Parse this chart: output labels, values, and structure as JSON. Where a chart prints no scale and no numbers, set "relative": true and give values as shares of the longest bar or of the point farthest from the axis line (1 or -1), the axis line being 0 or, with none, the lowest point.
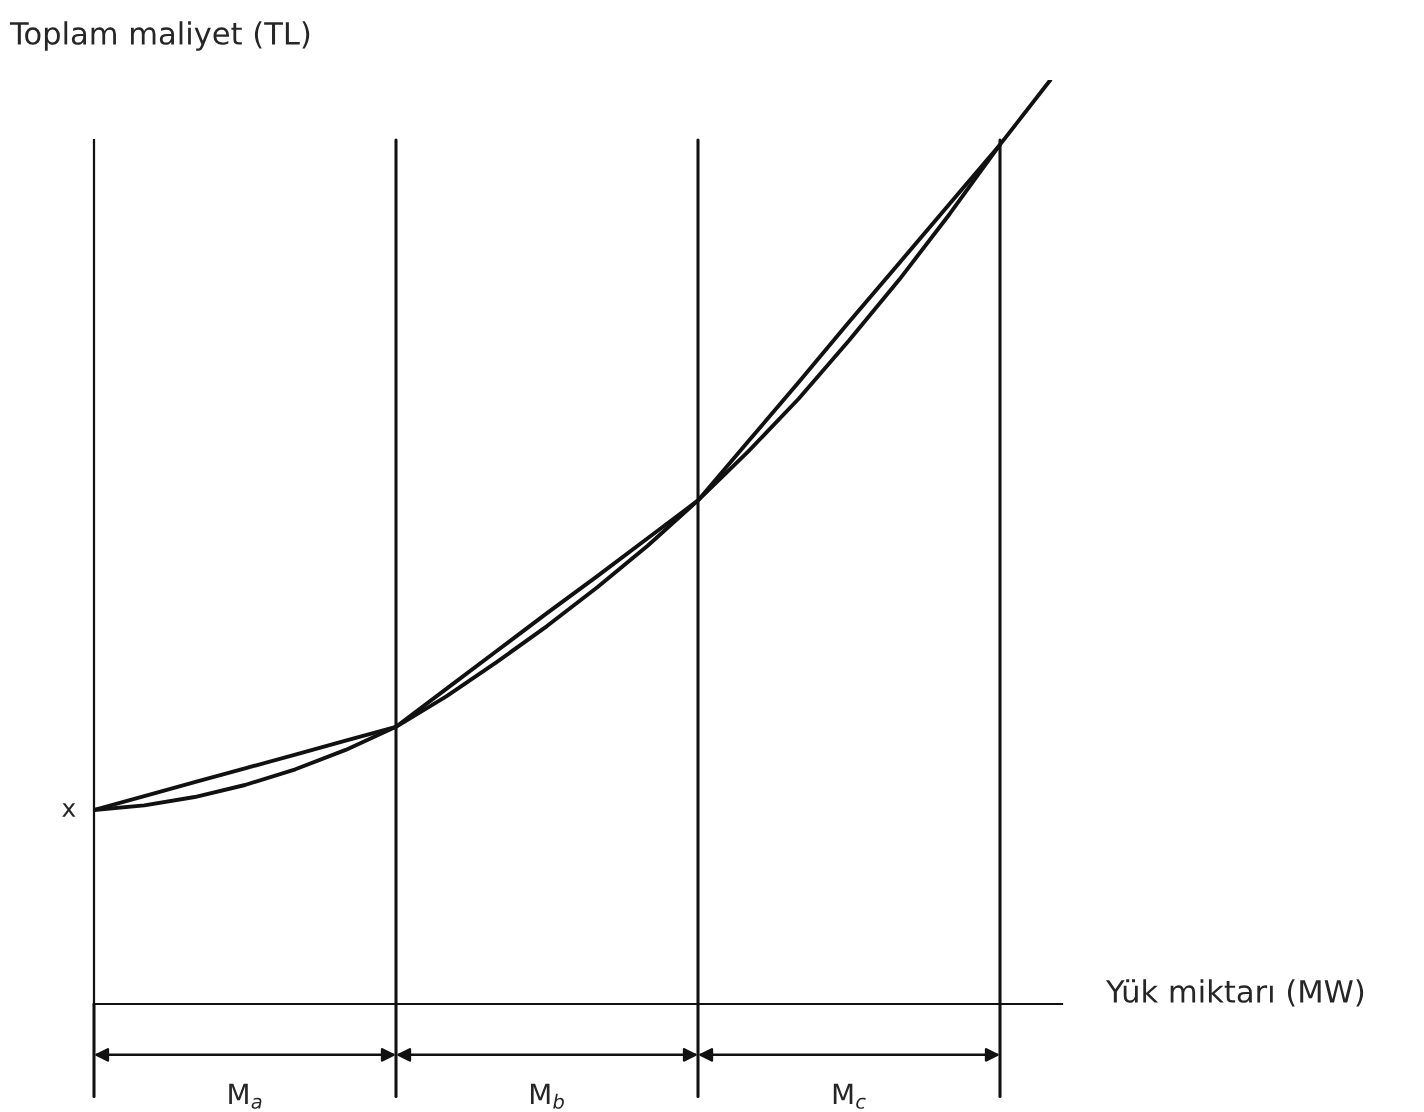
{
  "chart_data": {
    "type": "line",
    "relative": true,
    "ylabel": "Toplam maliyet (TL)",
    "xlabel": "Yük miktarı (MW)",
    "color": "#111111",
    "marker": "none",
    "tick_labels": false,
    "categories": [
      null,
      null,
      null,
      null,
      null,
      null,
      null,
      null,
      null,
      null,
      null,
      null,
      null,
      null,
      null,
      null,
      null,
      null,
      null,
      null
    ],
    "series": [
      {
        "color": "#111111",
        "values": [
          0.21,
          0.215,
          0.224,
          0.237,
          0.254,
          0.275,
          0.3,
          0.333,
          0.37,
          0.409,
          0.451,
          0.496,
          0.545,
          0.598,
          0.655,
          0.718,
          0.784,
          0.855,
          0.93,
          null
        ]
      },
      {
        "color": "#111111",
        "values": [
          0.21,
          0.225,
          0.24,
          0.255,
          0.27,
          0.285,
          0.3,
          0.341,
          0.382,
          0.423,
          0.463,
          0.504,
          0.545,
          0.609,
          0.673,
          0.738,
          0.802,
          0.866,
          0.93,
          1.0
        ]
      }
    ],
    "grid": "x",
    "annotations": [
      "x",
      "M$_{a}$",
      "M$_{b}$",
      "M$_{c}$"
    ]
  }
}
